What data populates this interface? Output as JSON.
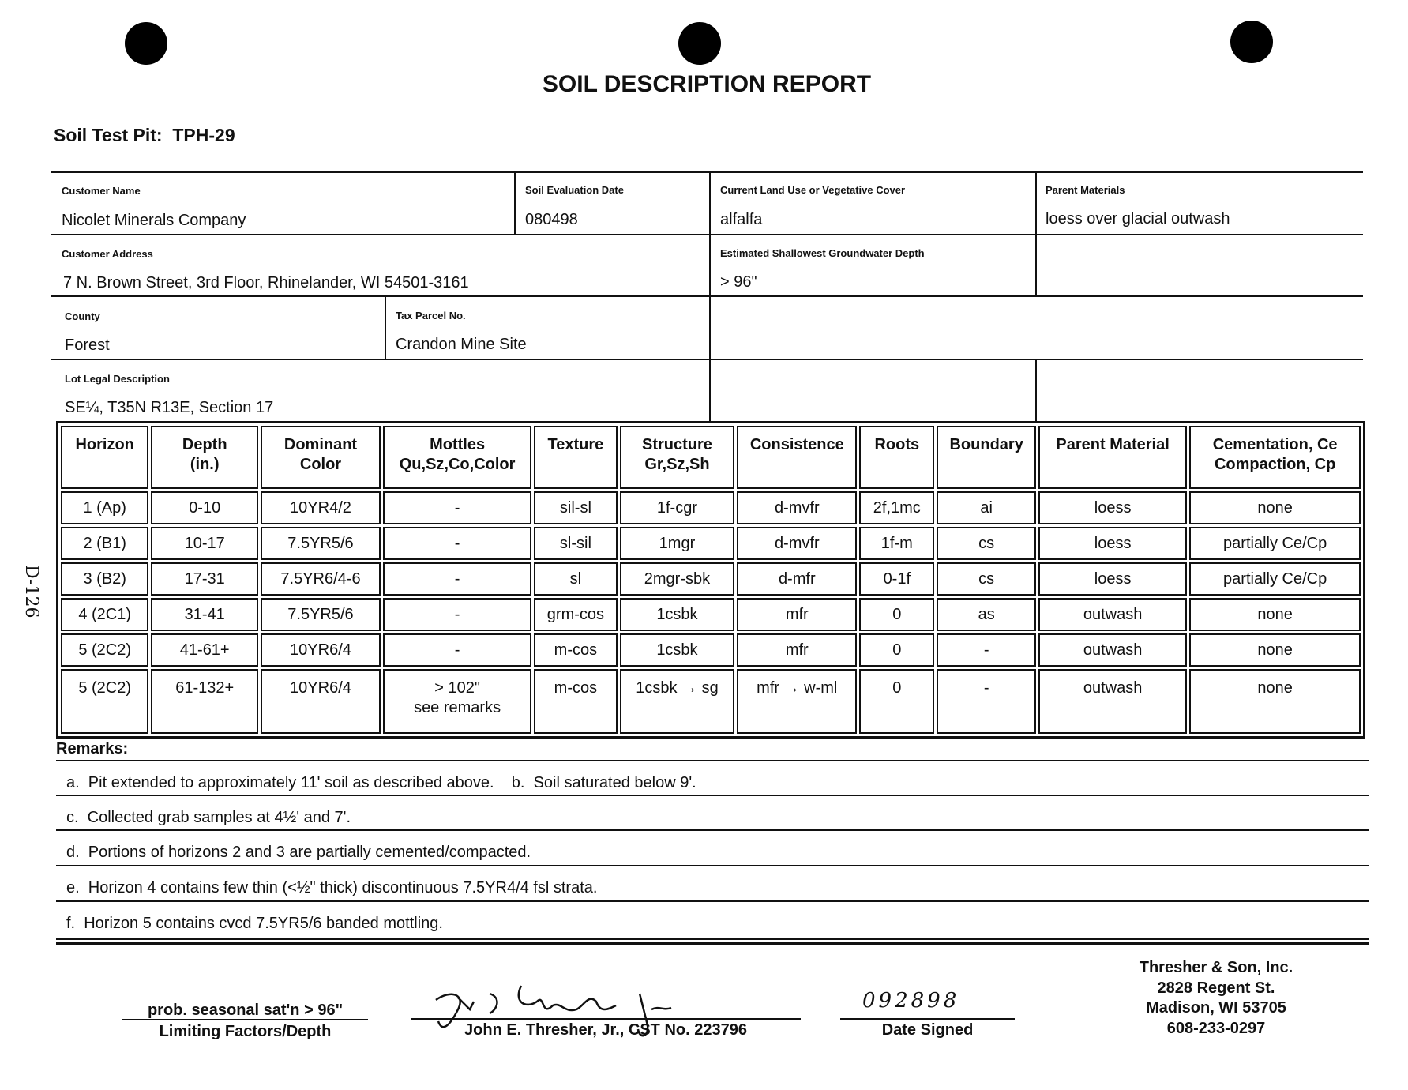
{
  "title": "SOIL DESCRIPTION REPORT",
  "pit": {
    "label": "Soil Test Pit:",
    "value": "TPH-29"
  },
  "fields": {
    "customer_name": {
      "label": "Customer Name",
      "value": "Nicolet Minerals Company"
    },
    "eval_date": {
      "label": "Soil Evaluation Date",
      "value": "080498"
    },
    "land_use": {
      "label": "Current Land Use or Vegetative Cover",
      "value": "alfalfa"
    },
    "parent_materials": {
      "label": "Parent Materials",
      "value": "loess over glacial outwash"
    },
    "customer_address": {
      "label": "Customer Address",
      "value": "7 N. Brown Street, 3rd Floor, Rhinelander, WI  54501-3161"
    },
    "groundwater": {
      "label": "Estimated Shallowest Groundwater Depth",
      "value": "> 96\""
    },
    "county": {
      "label": "County",
      "value": "Forest"
    },
    "tax_parcel": {
      "label": "Tax Parcel No.",
      "value": "Crandon Mine Site"
    },
    "legal": {
      "label": "Lot Legal Description",
      "value": "SE¼, T35N R13E, Section 17"
    }
  },
  "table": {
    "headers": [
      [
        "Horizon",
        ""
      ],
      [
        "Depth",
        "(in.)"
      ],
      [
        "Dominant",
        "Color"
      ],
      [
        "Mottles",
        "Qu,Sz,Co,Color"
      ],
      [
        "Texture",
        ""
      ],
      [
        "Structure",
        "Gr,Sz,Sh"
      ],
      [
        "Consistence",
        ""
      ],
      [
        "Roots",
        ""
      ],
      [
        "Boundary",
        ""
      ],
      [
        "Parent Material",
        ""
      ],
      [
        "Cementation, Ce",
        "Compaction, Cp"
      ]
    ],
    "rows": [
      [
        "1 (Ap)",
        "0-10",
        "10YR4/2",
        "-",
        "sil-sl",
        "1f-cgr",
        "d-mvfr",
        "2f,1mc",
        "ai",
        "loess",
        "none"
      ],
      [
        "2 (B1)",
        "10-17",
        "7.5YR5/6",
        "-",
        "sl-sil",
        "1mgr",
        "d-mvfr",
        "1f-m",
        "cs",
        "loess",
        "partially Ce/Cp"
      ],
      [
        "3 (B2)",
        "17-31",
        "7.5YR6/4-6",
        "-",
        "sl",
        "2mgr-sbk",
        "d-mfr",
        "0-1f",
        "cs",
        "loess",
        "partially Ce/Cp"
      ],
      [
        "4 (2C1)",
        "31-41",
        "7.5YR5/6",
        "-",
        "grm-cos",
        "1csbk",
        "mfr",
        "0",
        "as",
        "outwash",
        "none"
      ],
      [
        "5 (2C2)",
        "41-61+",
        "10YR6/4",
        "-",
        "m-cos",
        "1csbk",
        "mfr",
        "0",
        "-",
        "outwash",
        "none"
      ],
      [
        "5 (2C2)",
        "61-132+",
        "10YR6/4",
        "> 102\"\nsee remarks",
        "m-cos",
        "1csbk → sg",
        "mfr → w-ml",
        "0",
        "-",
        "outwash",
        "none"
      ]
    ]
  },
  "remarks": {
    "label": "Remarks:",
    "items": [
      "a.  Pit extended to approximately 11' soil as described above.    b.  Soil saturated below 9'.",
      "c.  Collected grab samples at 4½' and 7'.",
      "d.  Portions of horizons 2 and 3 are partially cemented/compacted.",
      "e.  Horizon 4 contains few thin (<½\" thick) discontinuous 7.5YR4/4 fsl strata.",
      "f.  Horizon 5 contains cvcd 7.5YR5/6 banded mottling."
    ]
  },
  "footer": {
    "limiting_value": "prob. seasonal sat'n > 96\"",
    "limiting_label": "Limiting Factors/Depth",
    "signature": "J. E. Thresher Jr.",
    "signer": "John E. Thresher, Jr., CST No. 223796",
    "date_value": "092898",
    "date_label": "Date Signed",
    "company": [
      "Thresher & Son, Inc.",
      "2828 Regent St.",
      "Madison, WI  53705",
      "608-233-0297"
    ]
  },
  "side_mark": "D-126"
}
